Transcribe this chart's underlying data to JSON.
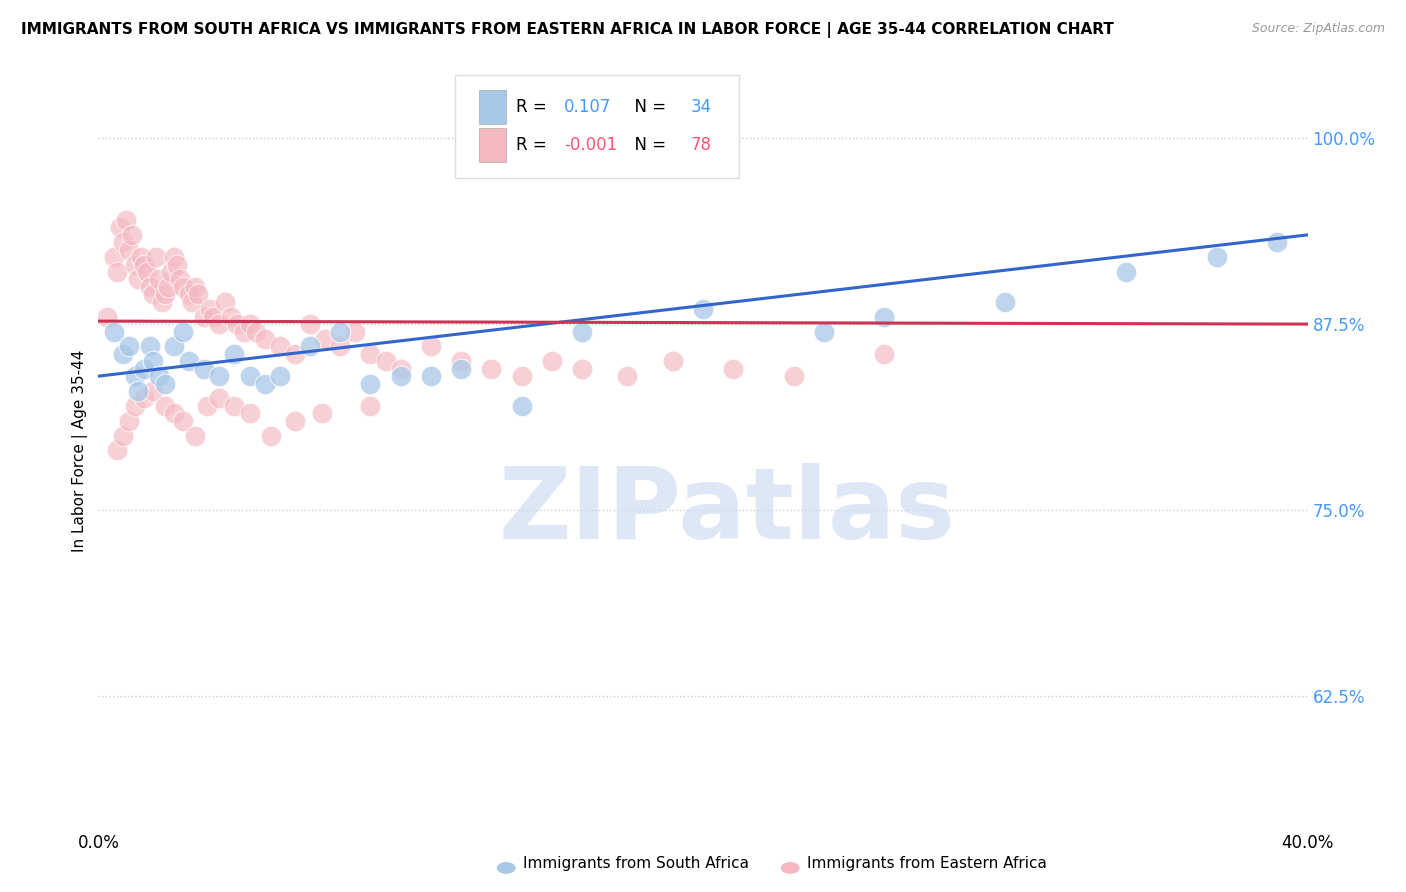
{
  "title": "IMMIGRANTS FROM SOUTH AFRICA VS IMMIGRANTS FROM EASTERN AFRICA IN LABOR FORCE | AGE 35-44 CORRELATION CHART",
  "source": "Source: ZipAtlas.com",
  "ylabel": "In Labor Force | Age 35-44",
  "xlim": [
    0.0,
    0.4
  ],
  "ylim": [
    0.535,
    1.045
  ],
  "yticks": [
    0.625,
    0.75,
    0.875,
    1.0
  ],
  "ytick_labels": [
    "62.5%",
    "75.0%",
    "87.5%",
    "100.0%"
  ],
  "xticks": [
    0.0,
    0.1,
    0.2,
    0.3,
    0.4
  ],
  "xtick_labels": [
    "0.0%",
    "",
    "",
    "",
    "40.0%"
  ],
  "south_africa_color": "#a8c8e8",
  "eastern_africa_color": "#f4b8c0",
  "south_africa_line_color": "#3366cc",
  "eastern_africa_line_color": "#cc3355",
  "watermark_text": "ZIPatlas",
  "watermark_color": "#c8d8f0",
  "background_color": "#ffffff",
  "grid_color": "#cccccc",
  "r_south": 0.107,
  "n_south": 34,
  "r_eastern": -0.001,
  "n_eastern": 78,
  "south_africa_x": [
    0.005,
    0.008,
    0.01,
    0.012,
    0.013,
    0.015,
    0.017,
    0.018,
    0.02,
    0.022,
    0.025,
    0.028,
    0.03,
    0.035,
    0.04,
    0.045,
    0.05,
    0.055,
    0.06,
    0.07,
    0.08,
    0.09,
    0.1,
    0.11,
    0.12,
    0.14,
    0.16,
    0.2,
    0.24,
    0.26,
    0.3,
    0.34,
    0.37,
    0.39
  ],
  "south_africa_y": [
    0.87,
    0.855,
    0.86,
    0.84,
    0.83,
    0.845,
    0.86,
    0.85,
    0.84,
    0.835,
    0.86,
    0.87,
    0.85,
    0.845,
    0.84,
    0.855,
    0.84,
    0.835,
    0.84,
    0.86,
    0.87,
    0.835,
    0.84,
    0.84,
    0.845,
    0.82,
    0.87,
    0.885,
    0.87,
    0.88,
    0.89,
    0.91,
    0.92,
    0.93
  ],
  "eastern_africa_x": [
    0.003,
    0.005,
    0.006,
    0.007,
    0.008,
    0.009,
    0.01,
    0.011,
    0.012,
    0.013,
    0.014,
    0.015,
    0.016,
    0.017,
    0.018,
    0.019,
    0.02,
    0.021,
    0.022,
    0.023,
    0.024,
    0.025,
    0.026,
    0.027,
    0.028,
    0.03,
    0.031,
    0.032,
    0.033,
    0.035,
    0.037,
    0.038,
    0.04,
    0.042,
    0.044,
    0.046,
    0.048,
    0.05,
    0.052,
    0.055,
    0.06,
    0.065,
    0.07,
    0.075,
    0.08,
    0.085,
    0.09,
    0.095,
    0.1,
    0.11,
    0.12,
    0.13,
    0.14,
    0.15,
    0.16,
    0.175,
    0.19,
    0.21,
    0.23,
    0.26,
    0.006,
    0.008,
    0.01,
    0.012,
    0.015,
    0.018,
    0.022,
    0.025,
    0.028,
    0.032,
    0.036,
    0.04,
    0.045,
    0.05,
    0.057,
    0.065,
    0.074,
    0.09
  ],
  "eastern_africa_y": [
    0.88,
    0.92,
    0.91,
    0.94,
    0.93,
    0.945,
    0.925,
    0.935,
    0.915,
    0.905,
    0.92,
    0.915,
    0.91,
    0.9,
    0.895,
    0.92,
    0.905,
    0.89,
    0.895,
    0.9,
    0.91,
    0.92,
    0.915,
    0.905,
    0.9,
    0.895,
    0.89,
    0.9,
    0.895,
    0.88,
    0.885,
    0.88,
    0.875,
    0.89,
    0.88,
    0.875,
    0.87,
    0.875,
    0.87,
    0.865,
    0.86,
    0.855,
    0.875,
    0.865,
    0.86,
    0.87,
    0.855,
    0.85,
    0.845,
    0.86,
    0.85,
    0.845,
    0.84,
    0.85,
    0.845,
    0.84,
    0.85,
    0.845,
    0.84,
    0.855,
    0.79,
    0.8,
    0.81,
    0.82,
    0.825,
    0.83,
    0.82,
    0.815,
    0.81,
    0.8,
    0.82,
    0.825,
    0.82,
    0.815,
    0.8,
    0.81,
    0.815,
    0.82
  ]
}
